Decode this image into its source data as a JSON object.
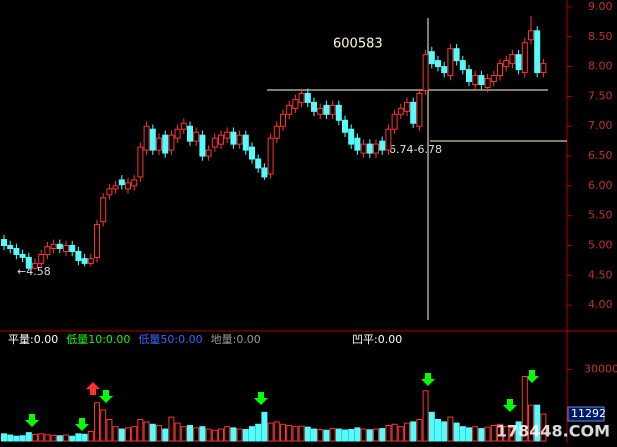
{
  "chart_data": [
    {
      "type": "candlestick",
      "title": "600583",
      "annotations": [
        "6.74-6.78",
        "←4.58"
      ],
      "up_color": "#ff3232",
      "down_color": "#54fcfc",
      "ylim": [
        3.6,
        9.1
      ],
      "yticks": [
        {
          "value": 4,
          "label": "4.00"
        },
        {
          "value": 4.5,
          "label": "4.50"
        },
        {
          "value": 5,
          "label": "5.00"
        },
        {
          "value": 5.5,
          "label": "5.50"
        },
        {
          "value": 6,
          "label": "6.00"
        },
        {
          "value": 6.5,
          "label": "6.50"
        },
        {
          "value": 7,
          "label": "7.00"
        },
        {
          "value": 7.5,
          "label": "7.50"
        },
        {
          "value": 8,
          "label": "8.00"
        },
        {
          "value": 8.5,
          "label": "8.50"
        },
        {
          "value": 9,
          "label": "9.00"
        }
      ],
      "open": [
        5.1,
        5.0,
        4.95,
        4.85,
        4.8,
        4.62,
        4.7,
        4.85,
        4.95,
        5.02,
        4.9,
        5.0,
        4.9,
        4.78,
        4.7,
        4.8,
        5.4,
        5.85,
        5.95,
        6.1,
        5.95,
        6.0,
        6.15,
        6.6,
        6.95,
        6.6,
        6.85,
        6.6,
        6.8,
        6.95,
        7.0,
        6.75,
        6.85,
        6.5,
        6.65,
        6.7,
        6.8,
        6.9,
        6.7,
        6.85,
        6.65,
        6.45,
        6.3,
        6.2,
        6.8,
        7.0,
        7.2,
        7.3,
        7.4,
        7.55,
        7.4,
        7.2,
        7.35,
        7.2,
        7.35,
        7.1,
        6.95,
        6.8,
        6.55,
        6.7,
        6.55,
        6.75,
        6.6,
        6.95,
        7.2,
        7.25,
        7.4,
        7.0,
        7.6,
        8.25,
        8.1,
        8.0,
        7.85,
        8.3,
        8.1,
        7.95,
        7.7,
        7.85,
        7.65,
        7.75,
        7.85,
        8.0,
        8.05,
        8.2,
        7.9,
        8.45,
        8.6,
        7.9
      ],
      "high": [
        5.18,
        5.08,
        5.03,
        4.93,
        4.88,
        4.78,
        4.93,
        5.06,
        5.1,
        5.1,
        5.08,
        5.08,
        4.98,
        4.86,
        4.86,
        5.43,
        5.88,
        6.03,
        6.08,
        6.18,
        6.13,
        6.18,
        6.73,
        7.08,
        7.03,
        6.88,
        6.93,
        6.93,
        7.03,
        7.13,
        7.08,
        6.98,
        6.93,
        6.68,
        6.88,
        6.93,
        6.98,
        6.98,
        6.93,
        6.93,
        6.73,
        6.53,
        6.38,
        6.88,
        7.08,
        7.28,
        7.43,
        7.53,
        7.63,
        7.63,
        7.48,
        7.38,
        7.43,
        7.43,
        7.43,
        7.18,
        7.03,
        6.88,
        6.78,
        6.78,
        6.78,
        6.83,
        7.03,
        7.28,
        7.38,
        7.48,
        7.48,
        7.63,
        8.28,
        8.33,
        8.18,
        8.08,
        8.38,
        8.38,
        8.18,
        8.03,
        7.93,
        7.93,
        7.88,
        7.93,
        8.13,
        8.18,
        8.28,
        8.28,
        8.48,
        8.85,
        8.68,
        8.13
      ],
      "low": [
        4.92,
        4.87,
        4.77,
        4.72,
        4.58,
        4.6,
        4.62,
        4.77,
        4.87,
        4.87,
        4.82,
        4.82,
        4.67,
        4.65,
        4.65,
        4.72,
        5.32,
        5.77,
        5.87,
        5.94,
        5.87,
        5.92,
        6.07,
        6.52,
        6.52,
        6.52,
        6.47,
        6.52,
        6.72,
        6.87,
        6.67,
        6.67,
        6.42,
        6.42,
        6.57,
        6.62,
        6.72,
        6.62,
        6.62,
        6.52,
        6.37,
        6.22,
        6.1,
        6.12,
        6.72,
        6.92,
        7.12,
        7.22,
        7.32,
        7.32,
        7.17,
        7.12,
        7.12,
        7.12,
        7.02,
        6.82,
        6.62,
        6.52,
        6.47,
        6.47,
        6.47,
        6.52,
        6.52,
        6.87,
        7.12,
        7.17,
        6.97,
        6.92,
        7.52,
        7.97,
        7.92,
        7.82,
        7.77,
        8.02,
        7.87,
        7.67,
        7.62,
        7.62,
        7.57,
        7.67,
        7.77,
        7.92,
        7.97,
        7.87,
        7.82,
        8.37,
        7.82,
        7.82
      ],
      "close": [
        5.0,
        4.95,
        4.85,
        4.8,
        4.62,
        4.7,
        4.85,
        4.98,
        5.02,
        4.95,
        5.0,
        4.9,
        4.75,
        4.7,
        4.78,
        5.35,
        5.8,
        5.95,
        6.0,
        6.02,
        6.05,
        6.1,
        6.65,
        7.0,
        6.6,
        6.8,
        6.55,
        6.85,
        6.95,
        7.05,
        6.75,
        6.9,
        6.5,
        6.6,
        6.8,
        6.85,
        6.9,
        6.7,
        6.85,
        6.6,
        6.45,
        6.3,
        6.15,
        6.8,
        7.0,
        7.2,
        7.35,
        7.45,
        7.55,
        7.4,
        7.25,
        7.3,
        7.2,
        7.35,
        7.1,
        6.9,
        6.7,
        6.6,
        6.7,
        6.55,
        6.7,
        6.6,
        6.95,
        7.2,
        7.3,
        7.4,
        7.05,
        7.55,
        8.2,
        8.05,
        8.0,
        7.9,
        8.3,
        8.1,
        7.95,
        7.75,
        7.85,
        7.7,
        7.8,
        7.85,
        8.05,
        8.1,
        8.2,
        7.95,
        8.4,
        8.6,
        7.9,
        8.05
      ]
    },
    {
      "type": "volume",
      "indicators": [
        {
          "text": "平量:0.00",
          "color": "#ffffff"
        },
        {
          "text": "低量10:0.00",
          "color": "#00ff00"
        },
        {
          "text": "低量50:0.00",
          "color": "#3366ff"
        },
        {
          "text": "地量:0.00",
          "color": "#999999"
        },
        {
          "text": "凹平:0.00",
          "color": "#ffffff"
        }
      ],
      "ylim": [
        0,
        36000
      ],
      "yticks": [
        30000
      ],
      "values": [
        3000,
        2500,
        2000,
        2200,
        3500,
        2800,
        3000,
        2600,
        2400,
        2200,
        2500,
        2000,
        3000,
        2800,
        4000,
        16000,
        13000,
        9000,
        6000,
        5000,
        5500,
        6000,
        9000,
        8000,
        7000,
        6500,
        5000,
        10000,
        7500,
        6000,
        6500,
        5500,
        6000,
        5000,
        4500,
        5000,
        6000,
        5500,
        5000,
        4800,
        6000,
        7000,
        12000,
        7500,
        8000,
        7000,
        6500,
        6000,
        6200,
        5800,
        5000,
        4800,
        4500,
        5200,
        5000,
        4600,
        4800,
        5500,
        5000,
        4700,
        5000,
        5200,
        6500,
        7000,
        6000,
        7500,
        8000,
        9000,
        21000,
        12000,
        9000,
        8000,
        10000,
        7500,
        6000,
        5500,
        6000,
        5200,
        5800,
        6500,
        7000,
        6000,
        5500,
        8000,
        27000,
        15000,
        15000,
        11292
      ]
    }
  ],
  "watermark": "178448.COM"
}
